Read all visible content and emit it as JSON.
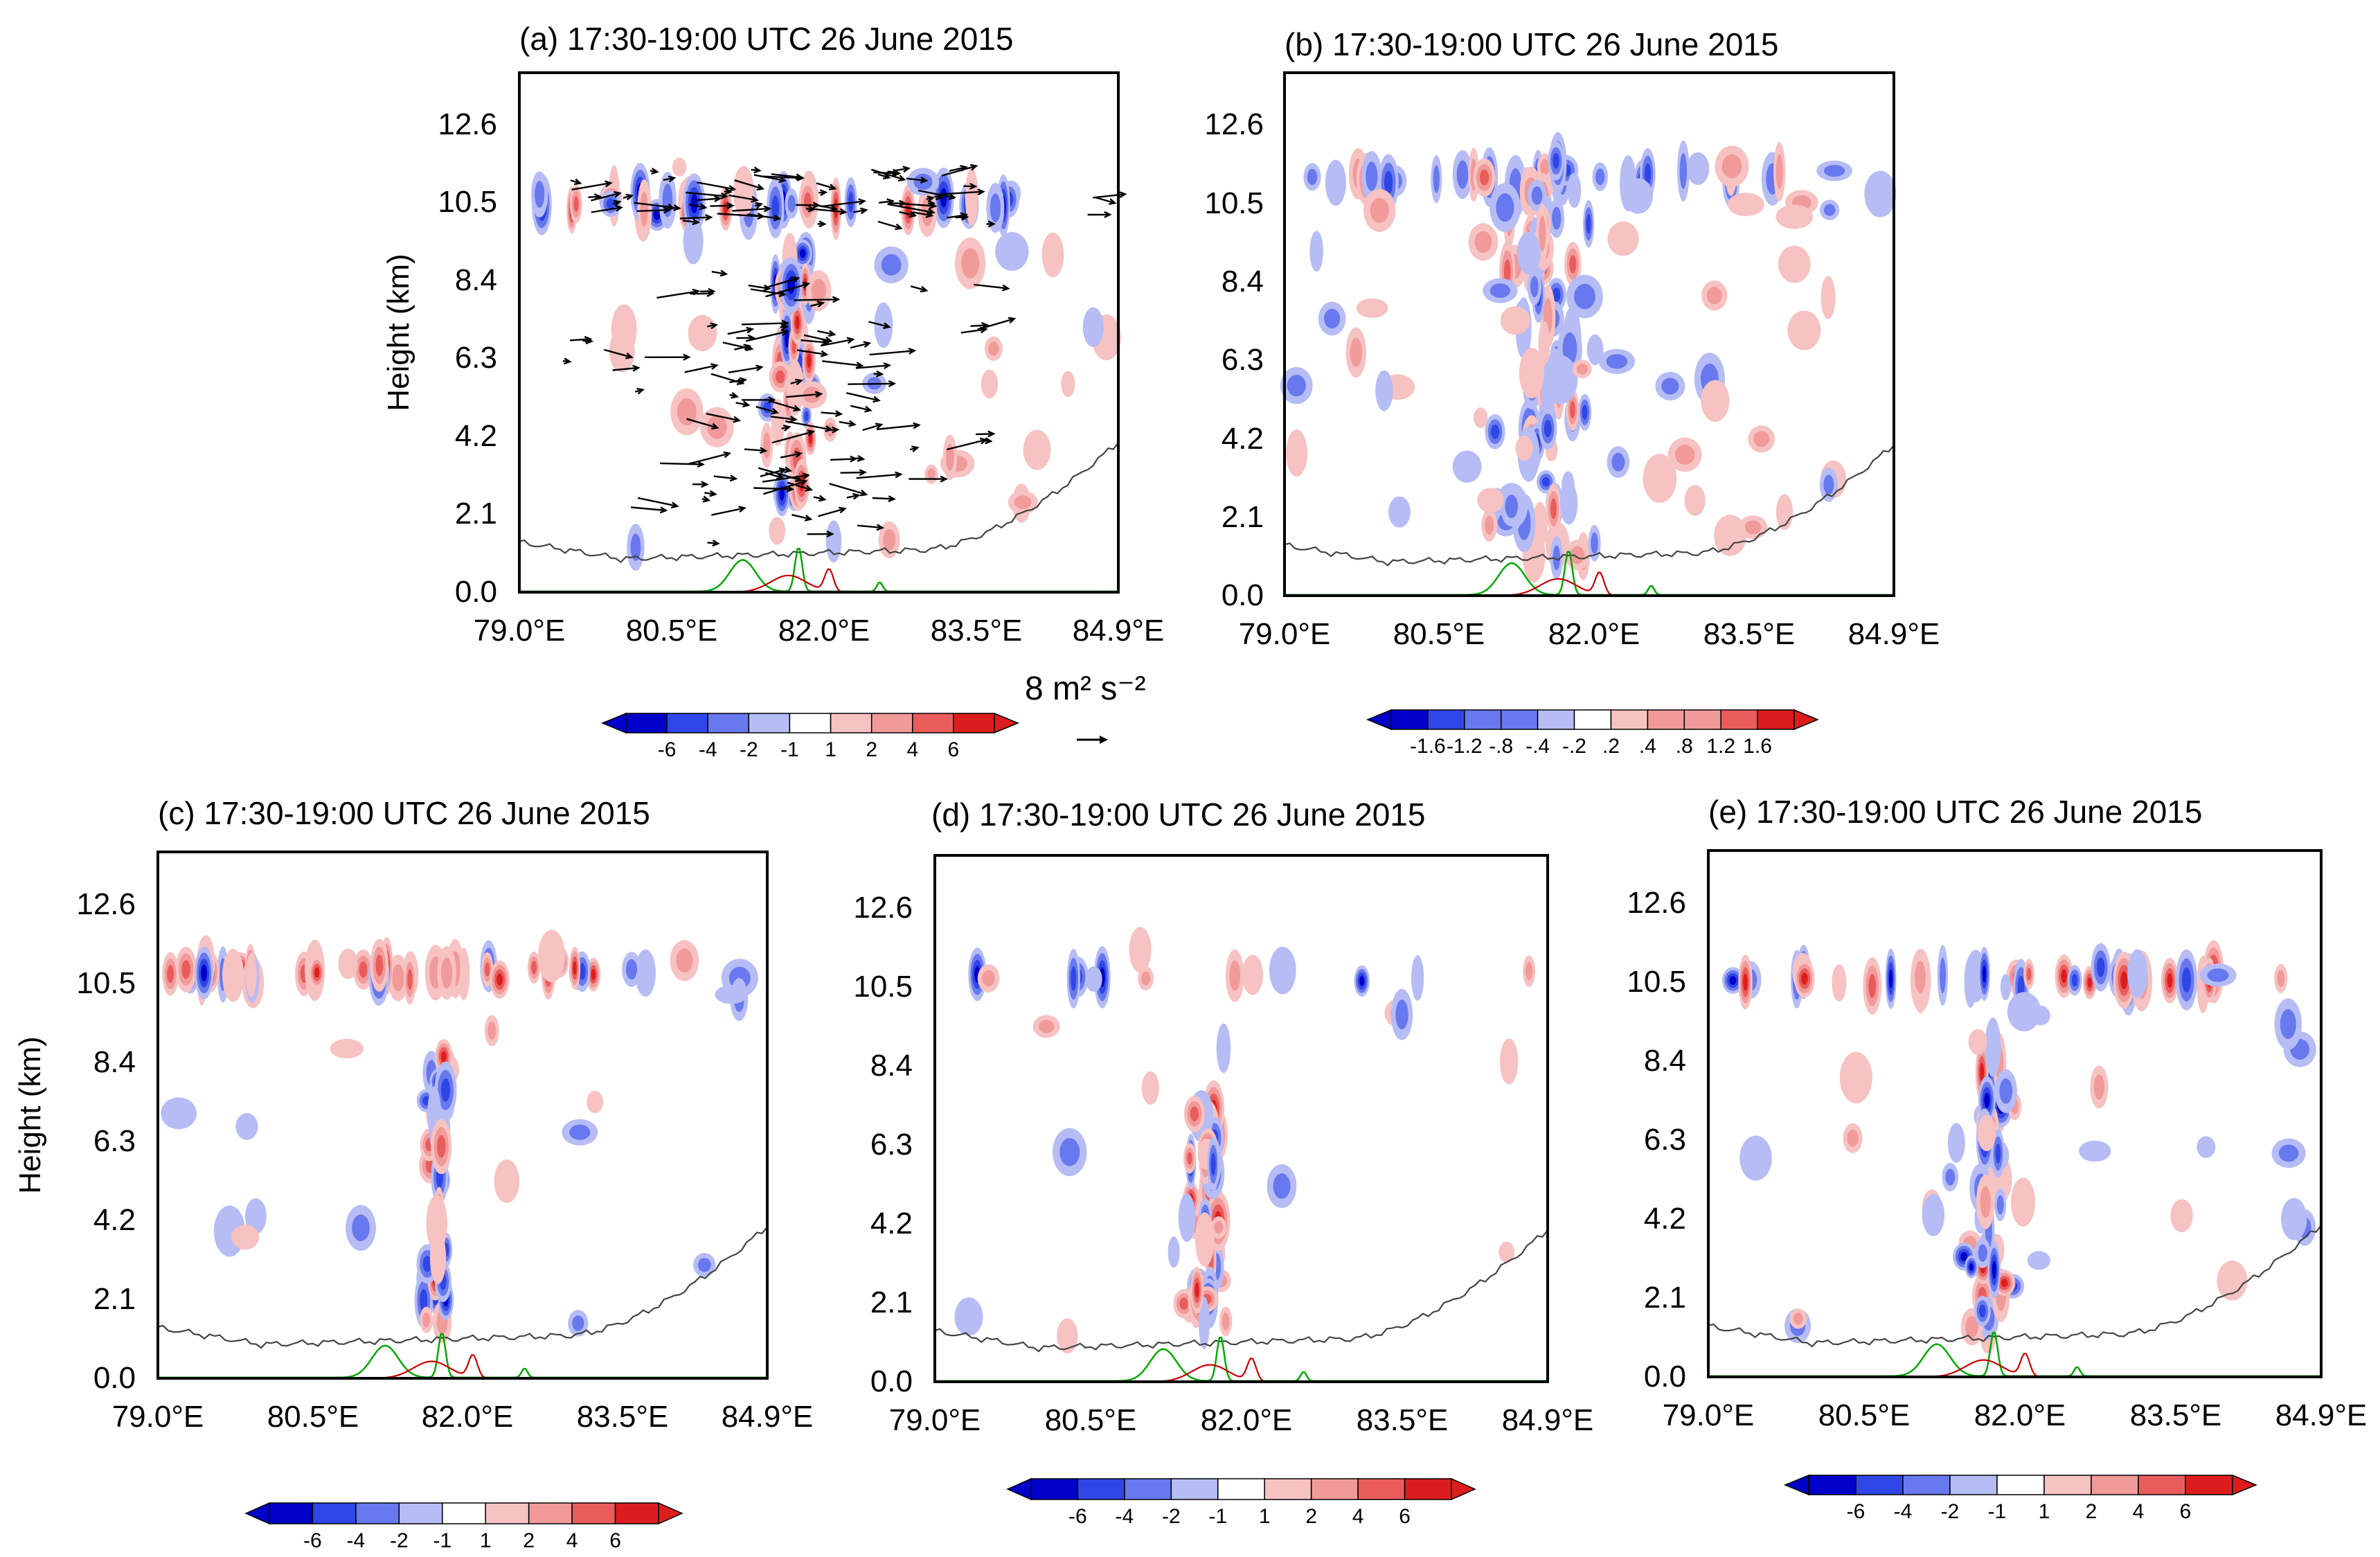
{
  "figure": {
    "colors": {
      "neg3": "#0000c8",
      "neg2": "#2f46e6",
      "neg1": "#6878ee",
      "neg0": "#b6bcf4",
      "neu": "#ffffff",
      "pos0": "#f7c2c2",
      "pos1": "#f19a9a",
      "pos2": "#ea5c5c",
      "pos3": "#dd1d1d",
      "terrain": "#444444",
      "green_line": "#00aa00",
      "red_line": "#cc0000",
      "vector": "#000000"
    },
    "vector_reference": {
      "label": "8 m² s⁻²",
      "magnitude": 8
    }
  },
  "chart_data": [
    {
      "id": "a",
      "type": "heatmap",
      "title": "(a) 17:30-19:00 UTC 26 June 2015",
      "ylabel": "Height (km)",
      "xlabel": "",
      "x_ticks": [
        "79.0°E",
        "80.5°E",
        "82.0°E",
        "83.5°E",
        "84.9°E"
      ],
      "y_ticks": [
        "0.0",
        "2.1",
        "4.2",
        "6.3",
        "8.4",
        "10.5",
        "12.6"
      ],
      "xlim": [
        79.0,
        84.9
      ],
      "ylim": [
        0.0,
        14.0
      ],
      "vectors": true,
      "colorbar": {
        "labels": [
          "-6",
          "-4",
          "-2",
          "-1",
          "1",
          "2",
          "4",
          "6"
        ]
      },
      "anvil": [
        10.5,
        0.6
      ],
      "updraft": [
        81.7,
        2.5,
        9.2,
        0.35
      ],
      "spread": 0.6
    },
    {
      "id": "b",
      "type": "heatmap",
      "title": "(b) 17:30-19:00 UTC 26 June 2015",
      "ylabel": "",
      "xlabel": "",
      "x_ticks": [
        "79.0°E",
        "80.5°E",
        "82.0°E",
        "83.5°E",
        "84.9°E"
      ],
      "y_ticks": [
        "0.0",
        "2.1",
        "4.2",
        "6.3",
        "8.4",
        "10.5",
        "12.6"
      ],
      "xlim": [
        79.0,
        84.9
      ],
      "ylim": [
        0.0,
        14.0
      ],
      "vectors": false,
      "colorbar": {
        "labels": [
          "-1.6",
          "-1.2",
          "-.8",
          "-.4",
          "-.2",
          ".2",
          ".4",
          ".8",
          "1.2",
          "1.6"
        ]
      },
      "anvil": [
        11.2,
        0.4
      ],
      "updraft": [
        81.5,
        1.0,
        12.0,
        0.7
      ],
      "spread": 1.0
    },
    {
      "id": "c",
      "type": "heatmap",
      "title": "(c) 17:30-19:00 UTC 26 June 2015",
      "ylabel": "Height (km)",
      "xlabel": "",
      "x_ticks": [
        "79.0°E",
        "80.5°E",
        "82.0°E",
        "83.5°E",
        "84.9°E"
      ],
      "y_ticks": [
        "0.0",
        "2.1",
        "4.2",
        "6.3",
        "8.4",
        "10.5",
        "12.6"
      ],
      "xlim": [
        79.0,
        84.9
      ],
      "ylim": [
        0.0,
        14.0
      ],
      "vectors": false,
      "colorbar": {
        "labels": [
          "-6",
          "-4",
          "-2",
          "-1",
          "1",
          "2",
          "4",
          "6"
        ]
      },
      "anvil": [
        10.8,
        0.7
      ],
      "updraft": [
        81.7,
        1.0,
        9.0,
        0.25
      ],
      "spread": 0.35
    },
    {
      "id": "d",
      "type": "heatmap",
      "title": "(d) 17:30-19:00 UTC 26 June 2015",
      "ylabel": "",
      "xlabel": "",
      "x_ticks": [
        "79.0°E",
        "80.5°E",
        "82.0°E",
        "83.5°E",
        "84.9°E"
      ],
      "y_ticks": [
        "0.0",
        "2.1",
        "4.2",
        "6.3",
        "8.4",
        "10.5",
        "12.6"
      ],
      "xlim": [
        79.0,
        84.9
      ],
      "ylim": [
        0.0,
        14.0
      ],
      "vectors": false,
      "colorbar": {
        "labels": [
          "-6",
          "-4",
          "-2",
          "-1",
          "1",
          "2",
          "4",
          "6"
        ]
      },
      "anvil": [
        10.8,
        0.15
      ],
      "updraft": [
        81.6,
        1.5,
        7.5,
        0.35
      ],
      "spread": 0.3
    },
    {
      "id": "e",
      "type": "heatmap",
      "title": "(e) 17:30-19:00 UTC 26 June 2015",
      "ylabel": "",
      "xlabel": "",
      "x_ticks": [
        "79.0°E",
        "80.5°E",
        "82.0°E",
        "83.5°E",
        "84.9°E"
      ],
      "y_ticks": [
        "0.0",
        "2.1",
        "4.2",
        "6.3",
        "8.4",
        "10.5",
        "12.6"
      ],
      "xlim": [
        79.0,
        84.9
      ],
      "ylim": [
        0.0,
        14.0
      ],
      "vectors": false,
      "colorbar": {
        "labels": [
          "-6",
          "-4",
          "-2",
          "-1",
          "1",
          "2",
          "4",
          "6"
        ]
      },
      "anvil": [
        10.6,
        0.6
      ],
      "updraft": [
        81.7,
        1.0,
        9.5,
        0.35
      ],
      "spread": 0.45
    }
  ]
}
